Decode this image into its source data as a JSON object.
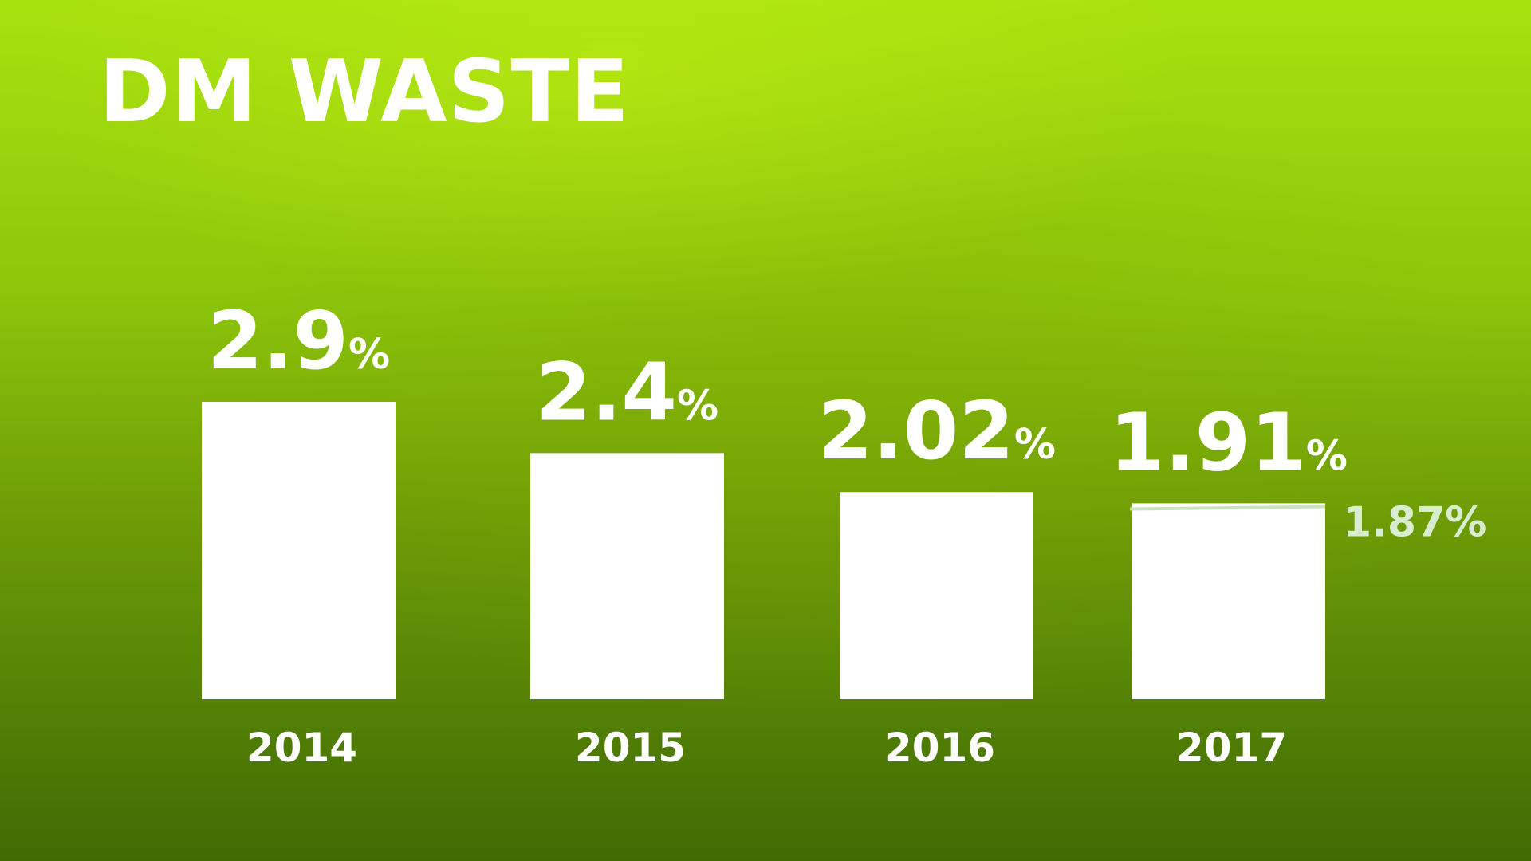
{
  "title": "DM WASTE",
  "chart_data": {
    "type": "bar",
    "title": "DM WASTE",
    "xlabel": "",
    "ylabel": "",
    "categories": [
      "2014",
      "2015",
      "2016",
      "2017"
    ],
    "values": [
      2.9,
      2.4,
      2.02,
      1.91
    ],
    "value_labels": [
      {
        "number": "2.9",
        "unit": "%"
      },
      {
        "number": "2.4",
        "unit": "%"
      },
      {
        "number": "2.02",
        "unit": "%"
      },
      {
        "number": "1.91",
        "unit": "%"
      }
    ],
    "reference_line": {
      "category": "2017",
      "value": 1.87,
      "label": "1.87%"
    },
    "grid": false,
    "legend": "none",
    "colors": {
      "bar": "#ffffff",
      "reference_line": "#c9e3bd",
      "reference_label": "#d9ecd0"
    }
  }
}
